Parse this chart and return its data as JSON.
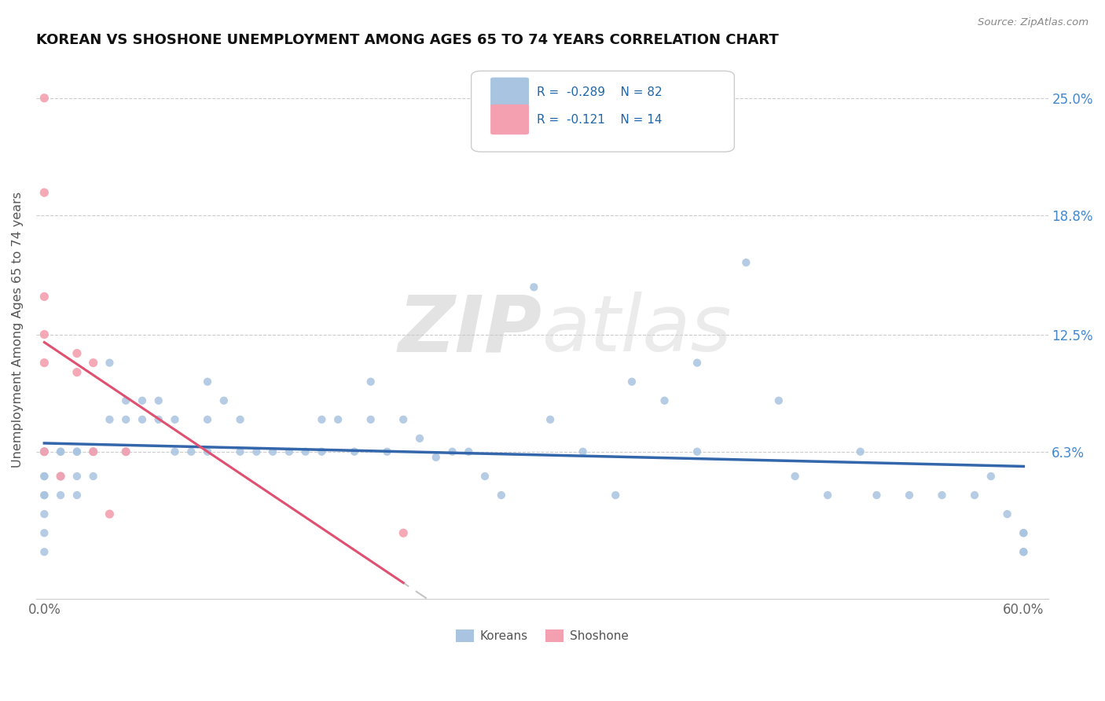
{
  "title": "KOREAN VS SHOSHONE UNEMPLOYMENT AMONG AGES 65 TO 74 YEARS CORRELATION CHART",
  "source": "Source: ZipAtlas.com",
  "ylabel": "Unemployment Among Ages 65 to 74 years",
  "xlim": [
    0.0,
    0.6
  ],
  "ylim": [
    -0.015,
    0.27
  ],
  "korean_R": -0.289,
  "korean_N": 82,
  "shoshone_R": -0.121,
  "shoshone_N": 14,
  "korean_color": "#A8C4E0",
  "shoshone_color": "#F4A0B0",
  "korean_line_color": "#3366AA",
  "shoshone_line_color": "#E05070",
  "legend_box_korean": "#A8C4E0",
  "legend_box_shoshone": "#F4A0B0",
  "watermark_color": "#D8D8D8",
  "background_color": "#FFFFFF",
  "korean_x": [
    0.0,
    0.0,
    0.0,
    0.0,
    0.0,
    0.0,
    0.0,
    0.0,
    0.0,
    0.0,
    0.0,
    0.01,
    0.01,
    0.01,
    0.01,
    0.01,
    0.02,
    0.02,
    0.02,
    0.02,
    0.03,
    0.03,
    0.03,
    0.04,
    0.04,
    0.05,
    0.05,
    0.05,
    0.06,
    0.06,
    0.07,
    0.07,
    0.08,
    0.08,
    0.09,
    0.1,
    0.1,
    0.1,
    0.11,
    0.12,
    0.12,
    0.13,
    0.14,
    0.15,
    0.16,
    0.17,
    0.17,
    0.18,
    0.19,
    0.2,
    0.2,
    0.21,
    0.22,
    0.23,
    0.24,
    0.25,
    0.26,
    0.27,
    0.28,
    0.3,
    0.31,
    0.33,
    0.35,
    0.36,
    0.38,
    0.4,
    0.4,
    0.43,
    0.45,
    0.46,
    0.48,
    0.5,
    0.51,
    0.53,
    0.55,
    0.57,
    0.58,
    0.59,
    0.6,
    0.6,
    0.6,
    0.6
  ],
  "korean_y": [
    0.063,
    0.063,
    0.063,
    0.063,
    0.05,
    0.05,
    0.04,
    0.04,
    0.03,
    0.02,
    0.01,
    0.063,
    0.063,
    0.05,
    0.05,
    0.04,
    0.063,
    0.063,
    0.05,
    0.04,
    0.063,
    0.063,
    0.05,
    0.11,
    0.08,
    0.09,
    0.08,
    0.063,
    0.09,
    0.08,
    0.09,
    0.08,
    0.08,
    0.063,
    0.063,
    0.1,
    0.08,
    0.063,
    0.09,
    0.08,
    0.063,
    0.063,
    0.063,
    0.063,
    0.063,
    0.08,
    0.063,
    0.08,
    0.063,
    0.1,
    0.08,
    0.063,
    0.08,
    0.07,
    0.06,
    0.063,
    0.063,
    0.05,
    0.04,
    0.15,
    0.08,
    0.063,
    0.04,
    0.1,
    0.09,
    0.11,
    0.063,
    0.163,
    0.09,
    0.05,
    0.04,
    0.063,
    0.04,
    0.04,
    0.04,
    0.04,
    0.05,
    0.03,
    0.02,
    0.02,
    0.01,
    0.01
  ],
  "shoshone_x": [
    0.0,
    0.0,
    0.0,
    0.0,
    0.0,
    0.0,
    0.01,
    0.02,
    0.02,
    0.03,
    0.03,
    0.04,
    0.05,
    0.22
  ],
  "shoshone_y": [
    0.25,
    0.2,
    0.145,
    0.125,
    0.11,
    0.063,
    0.05,
    0.115,
    0.105,
    0.11,
    0.063,
    0.03,
    0.063,
    0.02
  ]
}
